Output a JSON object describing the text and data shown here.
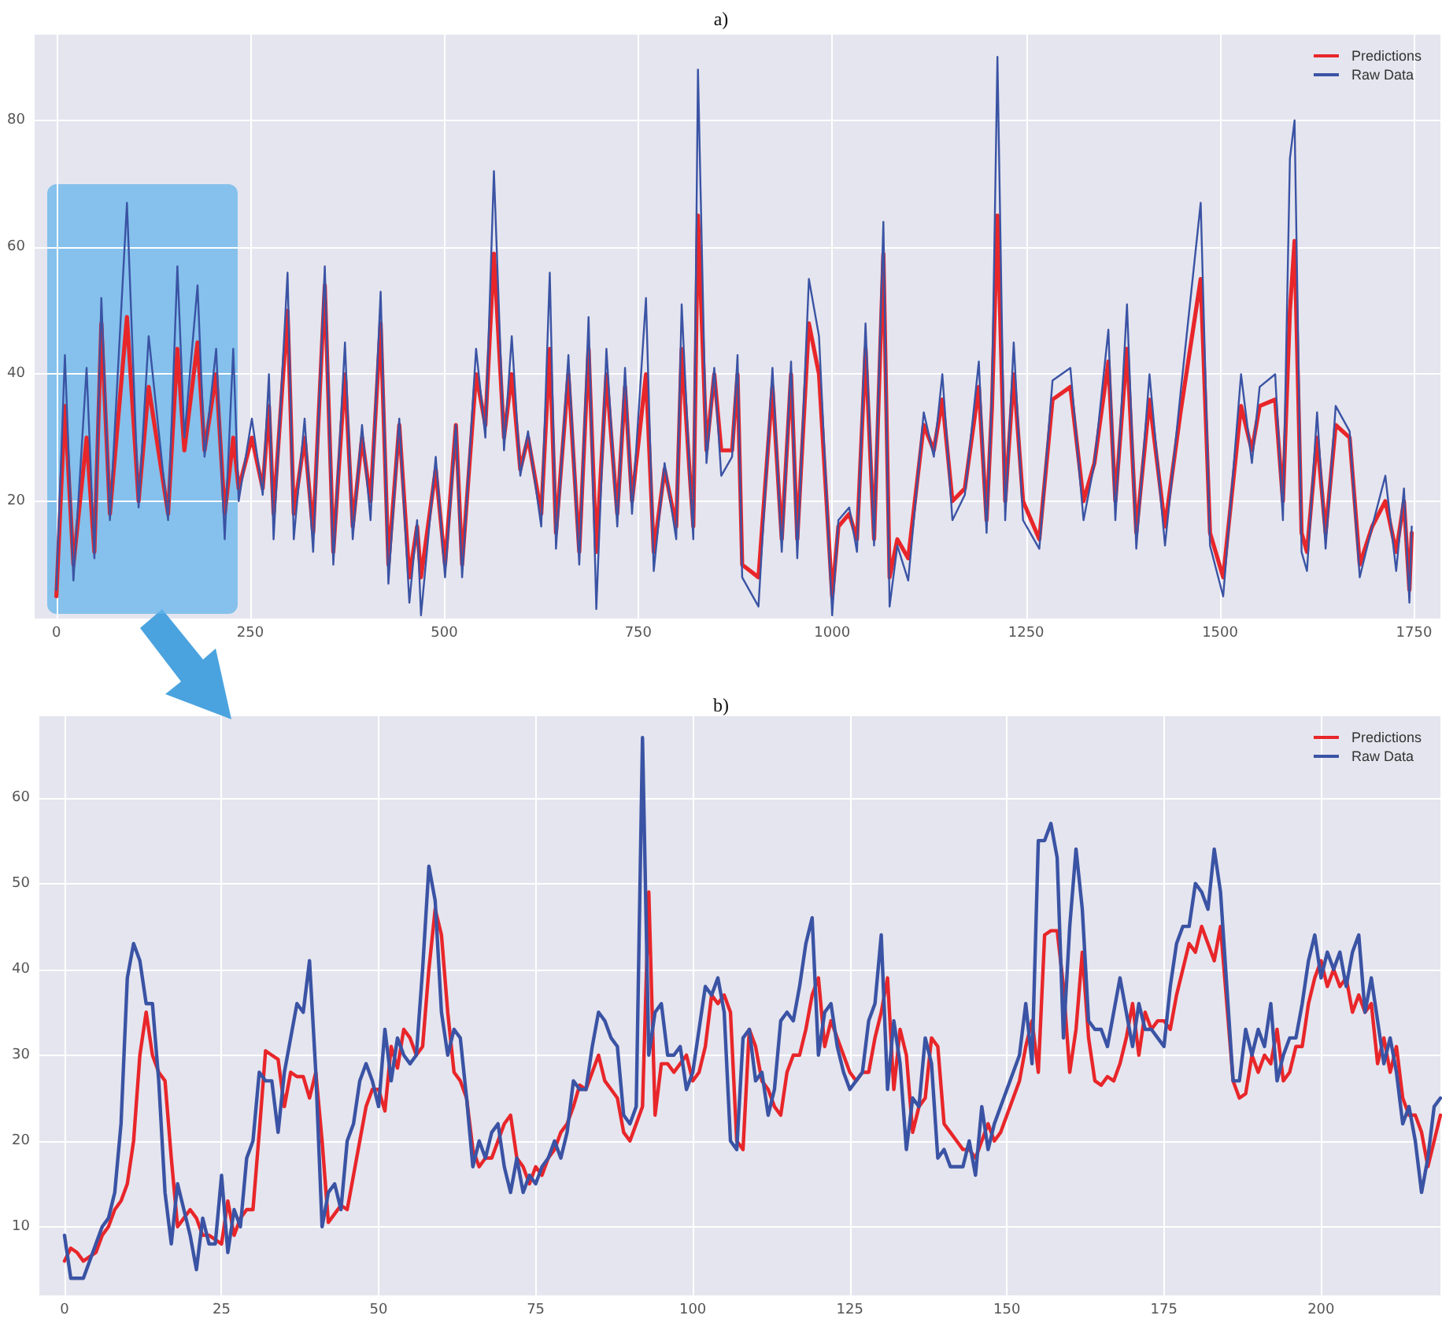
{
  "chart_data": [
    {
      "type": "line",
      "title": "a)",
      "xlim": [
        -28,
        1784
      ],
      "ylim": [
        1.5,
        93.5
      ],
      "xticks": [
        0,
        250,
        500,
        750,
        1000,
        1250,
        1500,
        1750
      ],
      "yticks": [
        20,
        40,
        60,
        80
      ],
      "grid": true,
      "legend": "top right",
      "marker": "none",
      "line_style": "solid",
      "series": [
        {
          "name": "Predictions",
          "color": "#e8262a",
          "x": [
            0,
            11,
            22,
            39,
            49,
            58,
            69,
            91,
            106,
            119,
            144,
            156,
            165,
            182,
            191,
            206,
            217,
            228,
            235,
            252,
            266,
            274,
            280,
            298,
            306,
            320,
            331,
            346,
            357,
            372,
            382,
            394,
            405,
            418,
            428,
            442,
            455,
            465,
            470,
            489,
            501,
            515,
            523,
            541,
            553,
            564,
            577,
            587,
            598,
            608,
            625,
            636,
            644,
            660,
            674,
            686,
            696,
            709,
            723,
            733,
            742,
            760,
            770,
            784,
            799,
            806,
            816,
            821,
            827,
            838,
            848,
            857,
            871,
            878,
            884,
            905,
            923,
            935,
            947,
            955,
            970,
            983,
            1000,
            1008,
            1022,
            1032,
            1043,
            1054,
            1066,
            1074,
            1084,
            1098,
            1118,
            1131,
            1142,
            1155,
            1171,
            1189,
            1199,
            1206,
            1213,
            1223,
            1234,
            1246,
            1267,
            1284,
            1307,
            1324,
            1338,
            1356,
            1365,
            1380,
            1392,
            1409,
            1429,
            1449,
            1475,
            1487,
            1504,
            1527,
            1541,
            1551,
            1571,
            1581,
            1590,
            1596,
            1605,
            1612,
            1625,
            1636,
            1649,
            1667,
            1680,
            1696,
            1713,
            1727,
            1737,
            1744,
            1747
          ],
          "values": [
            5,
            35,
            10,
            30,
            12,
            48,
            18,
            49,
            20,
            38,
            18,
            44,
            28,
            45,
            28,
            40,
            18,
            30,
            22,
            30,
            22,
            35,
            18,
            50,
            18,
            30,
            15,
            54,
            12,
            40,
            16,
            30,
            20,
            48,
            10,
            32,
            8,
            16,
            8,
            25,
            10,
            32,
            10,
            40,
            32,
            59,
            30,
            40,
            25,
            30,
            18,
            44,
            15,
            40,
            12,
            44,
            12,
            40,
            18,
            38,
            20,
            40,
            12,
            25,
            16,
            44,
            25,
            16,
            65,
            28,
            40,
            28,
            28,
            40,
            10,
            8,
            38,
            14,
            40,
            14,
            48,
            40,
            5,
            16,
            18,
            14,
            44,
            14,
            59,
            8,
            14,
            11,
            32,
            28,
            36,
            20,
            22,
            38,
            17,
            35,
            65,
            20,
            40,
            20,
            14,
            36,
            38,
            20,
            26,
            42,
            20,
            44,
            15,
            36,
            16,
            34,
            55,
            15,
            8,
            35,
            28,
            35,
            36,
            20,
            50,
            61,
            15,
            12,
            30,
            15,
            32,
            30,
            10,
            16,
            20,
            12,
            20,
            6,
            15
          ]
        },
        {
          "name": "Raw Data",
          "color": "#3a53a4",
          "x": [
            0,
            11,
            22,
            39,
            49,
            58,
            69,
            91,
            106,
            119,
            144,
            156,
            165,
            182,
            191,
            206,
            217,
            228,
            235,
            252,
            266,
            274,
            280,
            298,
            306,
            320,
            331,
            346,
            357,
            372,
            382,
            394,
            405,
            418,
            428,
            442,
            455,
            465,
            470,
            489,
            501,
            515,
            523,
            541,
            553,
            564,
            577,
            587,
            598,
            608,
            625,
            636,
            644,
            660,
            674,
            686,
            696,
            709,
            723,
            733,
            742,
            760,
            770,
            784,
            799,
            806,
            816,
            821,
            827,
            838,
            848,
            857,
            871,
            878,
            884,
            905,
            923,
            935,
            947,
            955,
            970,
            983,
            1000,
            1008,
            1022,
            1032,
            1043,
            1054,
            1066,
            1074,
            1084,
            1098,
            1118,
            1131,
            1142,
            1155,
            1171,
            1189,
            1199,
            1206,
            1213,
            1223,
            1234,
            1246,
            1267,
            1284,
            1307,
            1324,
            1338,
            1356,
            1365,
            1380,
            1392,
            1409,
            1429,
            1449,
            1475,
            1487,
            1504,
            1527,
            1541,
            1551,
            1571,
            1581,
            1590,
            1596,
            1605,
            1612,
            1625,
            1636,
            1649,
            1667,
            1680,
            1696,
            1713,
            1727,
            1737,
            1744,
            1747
          ],
          "values": [
            6,
            43,
            7.5,
            41,
            11,
            52,
            17,
            67,
            19,
            46,
            17,
            57,
            30,
            54,
            27,
            44,
            14,
            44,
            20,
            33,
            21,
            40,
            14,
            56,
            14,
            33,
            12,
            57,
            10,
            45,
            14,
            32,
            17,
            53,
            7,
            33,
            4,
            17,
            2,
            27,
            8,
            32,
            8,
            44,
            30,
            72,
            28,
            46,
            24,
            31,
            16,
            56,
            12.5,
            43,
            10,
            49,
            3,
            44,
            16,
            41,
            18,
            52,
            9,
            26,
            14,
            51,
            25,
            14,
            88,
            26,
            41,
            24,
            27,
            43,
            8,
            3.4,
            41,
            12,
            42,
            11,
            55,
            46,
            2,
            17,
            19,
            12,
            48,
            13,
            64,
            3.4,
            13,
            7.5,
            34,
            27,
            40,
            17,
            21,
            42,
            15,
            37,
            90,
            17,
            45,
            17,
            12.5,
            39,
            41,
            17,
            26,
            47,
            17,
            51,
            12.5,
            40,
            13,
            37,
            67,
            13,
            5,
            40,
            26,
            38,
            40,
            17,
            74,
            80,
            12,
            9,
            34,
            12.5,
            35,
            31,
            8,
            16,
            24,
            9,
            22,
            4,
            16
          ]
        }
      ]
    },
    {
      "type": "line",
      "title": "b)",
      "xlim": [
        -4,
        219
      ],
      "ylim": [
        2,
        69.5
      ],
      "xticks": [
        0,
        25,
        50,
        75,
        100,
        125,
        150,
        175,
        200
      ],
      "yticks": [
        10,
        20,
        30,
        40,
        50,
        60
      ],
      "grid": true,
      "legend": "top right",
      "marker": "none",
      "line_style": "solid",
      "x": [
        0,
        1,
        2,
        3,
        4,
        5,
        6,
        7,
        8,
        9,
        10,
        11,
        12,
        13,
        14,
        15,
        16,
        17,
        18,
        19,
        20,
        21,
        22,
        23,
        24,
        25,
        26,
        27,
        28,
        29,
        30,
        31,
        32,
        33,
        34,
        35,
        36,
        37,
        38,
        39,
        40,
        41,
        42,
        43,
        44,
        45,
        46,
        47,
        48,
        49,
        50,
        51,
        52,
        53,
        54,
        55,
        56,
        57,
        58,
        59,
        60,
        61,
        62,
        63,
        64,
        65,
        66,
        67,
        68,
        69,
        70,
        71,
        72,
        73,
        74,
        75,
        76,
        77,
        78,
        79,
        80,
        81,
        82,
        83,
        84,
        85,
        86,
        87,
        88,
        89,
        90,
        91,
        92,
        93,
        94,
        95,
        96,
        97,
        98,
        99,
        100,
        101,
        102,
        103,
        104,
        105,
        106,
        107,
        108,
        109,
        110,
        111,
        112,
        113,
        114,
        115,
        116,
        117,
        118,
        119,
        120,
        121,
        122,
        123,
        124,
        125,
        126,
        127,
        128,
        129,
        130,
        131,
        132,
        133,
        134,
        135,
        136,
        137,
        138,
        139,
        140,
        141,
        142,
        143,
        144,
        145,
        146,
        147,
        148,
        149,
        150,
        151,
        152,
        153,
        154,
        155,
        156,
        157,
        158,
        159,
        160,
        161,
        162,
        163,
        164,
        165,
        166,
        167,
        168,
        169,
        170,
        171,
        172,
        173,
        174,
        175,
        176,
        177,
        178,
        179,
        180,
        181,
        182,
        183,
        184,
        185,
        186,
        187,
        188,
        189,
        190,
        191,
        192,
        193,
        194,
        195,
        196,
        197,
        198,
        199,
        200,
        201,
        202,
        203,
        204,
        205,
        206,
        207,
        208,
        209,
        210,
        211,
        212,
        213,
        214,
        215,
        216,
        217,
        218,
        219
      ],
      "series": [
        {
          "name": "Predictions",
          "color": "#e8262a",
          "values": [
            6,
            7.5,
            7,
            6,
            6.5,
            7,
            9,
            10,
            12,
            13,
            15,
            20,
            30,
            35,
            30,
            28,
            27,
            18,
            10,
            11,
            12,
            11,
            9,
            9,
            8.5,
            8,
            13,
            9,
            11,
            12,
            12,
            21,
            30.5,
            30,
            29.5,
            24,
            28,
            27.5,
            27.5,
            25,
            28,
            20,
            10.5,
            11.5,
            12.5,
            12,
            16,
            20,
            24,
            26,
            26,
            23.5,
            31,
            28.5,
            33,
            32,
            30,
            31,
            40,
            47,
            44,
            35,
            28,
            27,
            25,
            19,
            17,
            18,
            18,
            20,
            22,
            23,
            18,
            17,
            15,
            17,
            16,
            18,
            19,
            21,
            22,
            24,
            26.5,
            26,
            28,
            30,
            27,
            26,
            25,
            21,
            20,
            22,
            24,
            49,
            23,
            29,
            29,
            28,
            29,
            30,
            27,
            28,
            31,
            37,
            36,
            37,
            35,
            20,
            19,
            33,
            31,
            27,
            26,
            24,
            23,
            28,
            30,
            30,
            33,
            37,
            39,
            31,
            34,
            32,
            30,
            28,
            27,
            28,
            28,
            32,
            35,
            39,
            26,
            33,
            30,
            21,
            24,
            25,
            32,
            31,
            22,
            21,
            20,
            19,
            19,
            18,
            20,
            22,
            20,
            21,
            23,
            25,
            27,
            31,
            34,
            28,
            44,
            44.5,
            44.5,
            38,
            28,
            33,
            42,
            32,
            27,
            26.5,
            27.5,
            27,
            29,
            32,
            36,
            30,
            35,
            33,
            34,
            34,
            33,
            37,
            40,
            43,
            42,
            45,
            43,
            41,
            45,
            36,
            27,
            25,
            25.5,
            30,
            28,
            30,
            29,
            33,
            27,
            28,
            31,
            31,
            36,
            39,
            41,
            38,
            40,
            38,
            39,
            35,
            37,
            35,
            36,
            29,
            32,
            28,
            31,
            25,
            23,
            23,
            21,
            17,
            20,
            23
          ]
        },
        {
          "name": "Raw Data",
          "color": "#3a53a4",
          "values": [
            9,
            4,
            4,
            4,
            6,
            8,
            10,
            11,
            14,
            22,
            39,
            43,
            41,
            36,
            36,
            27,
            14,
            8,
            15,
            12,
            9,
            5,
            11,
            8,
            8,
            16,
            7,
            12,
            10,
            18,
            20,
            28,
            27,
            27,
            21,
            28,
            32,
            36,
            35,
            41,
            28,
            10,
            14,
            15,
            12,
            20,
            22,
            27,
            29,
            27,
            24,
            33,
            27,
            32,
            30,
            29,
            30,
            40,
            52,
            48,
            35,
            30,
            33,
            32,
            25,
            17,
            20,
            18,
            21,
            22,
            17,
            14,
            18,
            14,
            16,
            15,
            17,
            18,
            20,
            18,
            21,
            27,
            26,
            26,
            31,
            35,
            34,
            32,
            31,
            23,
            22,
            24,
            67,
            30,
            35,
            36,
            30,
            30,
            31,
            26,
            28,
            33,
            38,
            37,
            39,
            35,
            20,
            19,
            32,
            33,
            27,
            28,
            23,
            26,
            34,
            35,
            34,
            38,
            43,
            46,
            30,
            35,
            36,
            31,
            28,
            26,
            27,
            28,
            34,
            36,
            44,
            26,
            34,
            29,
            19,
            25,
            24,
            32,
            29,
            18,
            19,
            17,
            17,
            17,
            20,
            16,
            24,
            19,
            22,
            24,
            26,
            28,
            30,
            36,
            29,
            55,
            55,
            57,
            53,
            32,
            45,
            54,
            47,
            34,
            33,
            33,
            31,
            35,
            39,
            35,
            31,
            36,
            33,
            33,
            32,
            31,
            38,
            43,
            45,
            45,
            50,
            49,
            47,
            54,
            49,
            38,
            27,
            27,
            33,
            30,
            33,
            31,
            36,
            27,
            30,
            32,
            32,
            36,
            41,
            44,
            39,
            42,
            40,
            42,
            38,
            42,
            44,
            35,
            39,
            34,
            29,
            32,
            28,
            22,
            24,
            20,
            14,
            18,
            24,
            25
          ]
        }
      ]
    }
  ]
}
